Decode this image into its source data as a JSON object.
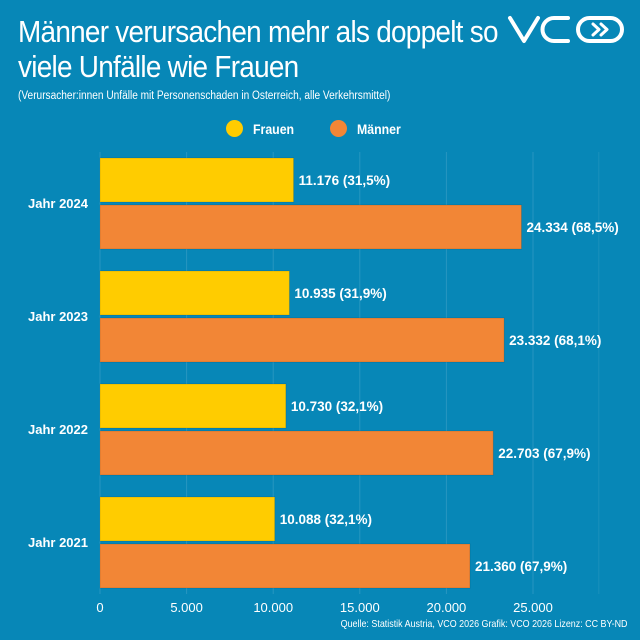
{
  "header": {
    "title": "Männer verursachen mehr als doppelt so viele Unfälle wie Frauen",
    "subtitle": "(Verursacher:innen Unfälle mit Personenschaden in Österreich, alle Verkehrsmittel)",
    "logo_text": "VCÖ"
  },
  "footer": {
    "source": "Quelle: Statistik Austria, VCO 2026 Grafik: VCO 2026 Lizenz: CC BY-ND"
  },
  "chart_data": {
    "type": "bar",
    "orientation": "horizontal",
    "title": "Männer verursachen mehr als doppelt so viele Unfälle wie Frauen",
    "subtitle": "(Verursacher:innen Unfälle mit Personenschaden in Österreich, alle Verkehrsmittel)",
    "categories": [
      "Jahr 2024",
      "Jahr 2023",
      "Jahr 2022",
      "Jahr 2021"
    ],
    "series": [
      {
        "name": "Frauen",
        "color": "#ffcc00",
        "values": [
          11176,
          10935,
          10730,
          10088
        ],
        "labels": [
          "11.176 (31,5%)",
          "10.935 (31,9%)",
          "10.730 (32,1%)",
          "10.088 (32,1%)"
        ]
      },
      {
        "name": "Männer",
        "color": "#f28636",
        "values": [
          24334,
          23332,
          22703,
          21360
        ],
        "labels": [
          "24.334 (68,5%)",
          "23.332 (68,1%)",
          "22.703 (67,9%)",
          "21.360 (67,9%)"
        ]
      }
    ],
    "xlim": [
      0,
      25000
    ],
    "xticks": [
      0,
      5000,
      10000,
      15000,
      20000,
      25000
    ],
    "xtick_labels": [
      "0",
      "5.000",
      "10.000",
      "15.000",
      "20.000",
      "25.000"
    ],
    "grid": true,
    "legend_placement": "top-center",
    "background": "#0787b7"
  }
}
